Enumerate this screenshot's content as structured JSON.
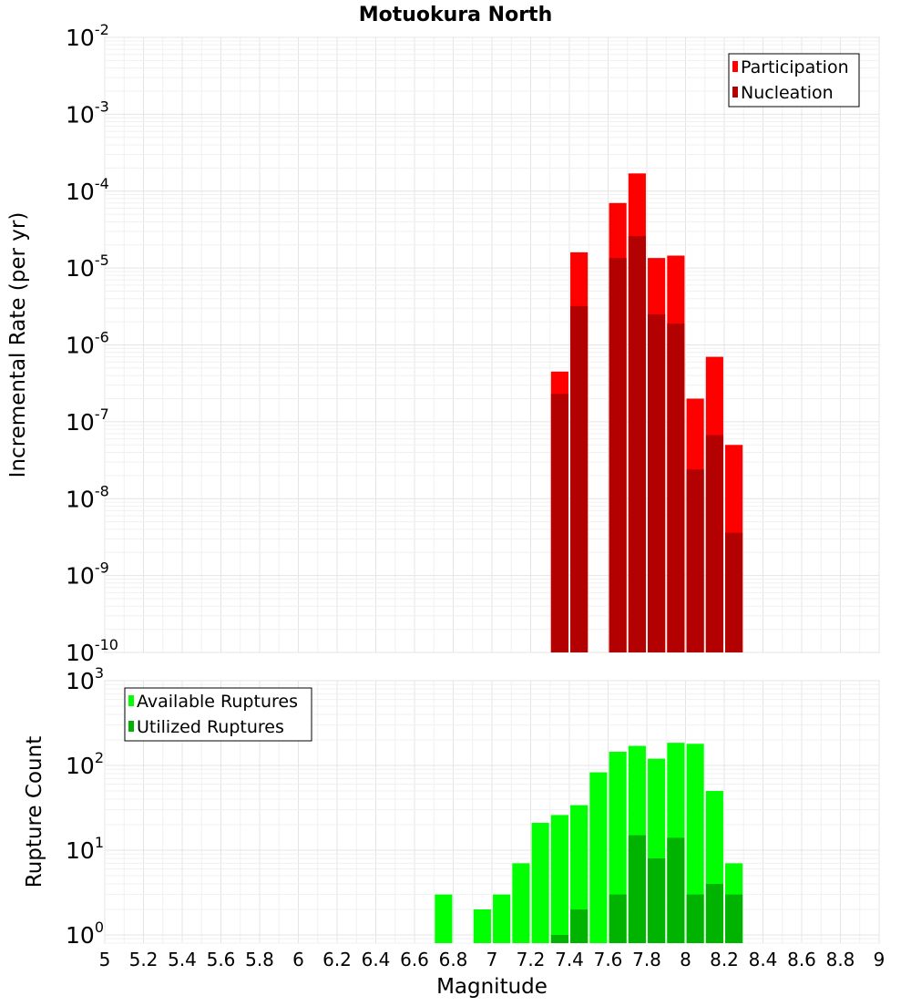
{
  "chart_data": [
    {
      "type": "bar",
      "title": "Motuokura North",
      "ylabel": "Incremental Rate (per yr)",
      "xlabel": "",
      "y_scale": "log",
      "ylim": [
        1e-10,
        0.01
      ],
      "xlim": [
        5,
        9
      ],
      "grid": true,
      "legend_position": "top-right",
      "y_tick_labels": [
        {
          "base": "10",
          "exp": "-2"
        },
        {
          "base": "10",
          "exp": "-3"
        },
        {
          "base": "10",
          "exp": "-4"
        },
        {
          "base": "10",
          "exp": "-5"
        },
        {
          "base": "10",
          "exp": "-6"
        },
        {
          "base": "10",
          "exp": "-7"
        },
        {
          "base": "10",
          "exp": "-8"
        },
        {
          "base": "10",
          "exp": "-9"
        },
        {
          "base": "10",
          "exp": "-10"
        }
      ],
      "x": [
        7.35,
        7.45,
        7.55,
        7.65,
        7.75,
        7.85,
        7.95,
        8.05,
        8.15,
        8.25
      ],
      "series": [
        {
          "name": "Participation",
          "color": "#ff0000",
          "values": [
            4.5e-07,
            1.6e-05,
            null,
            7e-05,
            0.00017,
            1.35e-05,
            1.45e-05,
            2e-07,
            7e-07,
            5e-08
          ]
        },
        {
          "name": "Nucleation",
          "color": "#b30000",
          "values": [
            2.3e-07,
            3.2e-06,
            null,
            1.35e-05,
            2.6e-05,
            2.5e-06,
            1.9e-06,
            2.4e-08,
            6.7e-08,
            3.6e-09
          ]
        }
      ]
    },
    {
      "type": "bar",
      "title": "",
      "ylabel": "Rupture Count",
      "xlabel": "Magnitude",
      "y_scale": "log",
      "ylim": [
        0.8,
        1000
      ],
      "xlim": [
        5,
        9
      ],
      "grid": true,
      "legend_position": "top-left",
      "y_tick_labels": [
        {
          "base": "10",
          "exp": "3"
        },
        {
          "base": "10",
          "exp": "2"
        },
        {
          "base": "10",
          "exp": "1"
        },
        {
          "base": "10",
          "exp": "0"
        }
      ],
      "x_tick_labels": [
        "5",
        "5.2",
        "5.4",
        "5.6",
        "5.8",
        "6",
        "6.2",
        "6.4",
        "6.6",
        "6.8",
        "7",
        "7.2",
        "7.4",
        "7.6",
        "7.8",
        "8",
        "8.2",
        "8.4",
        "8.6",
        "8.8",
        "9"
      ],
      "x": [
        6.75,
        6.85,
        6.95,
        7.05,
        7.15,
        7.25,
        7.35,
        7.45,
        7.55,
        7.65,
        7.75,
        7.85,
        7.95,
        8.05,
        8.15,
        8.25
      ],
      "series": [
        {
          "name": "Available Ruptures",
          "color": "#00ff00",
          "values": [
            3,
            null,
            2,
            3,
            7,
            21,
            26,
            34,
            83,
            145,
            170,
            120,
            185,
            180,
            50,
            7
          ]
        },
        {
          "name": "Utilized Ruptures",
          "color": "#00b300",
          "values": [
            null,
            null,
            null,
            null,
            null,
            null,
            1,
            2,
            null,
            3,
            15,
            8,
            14,
            3,
            4,
            3
          ]
        }
      ]
    }
  ]
}
